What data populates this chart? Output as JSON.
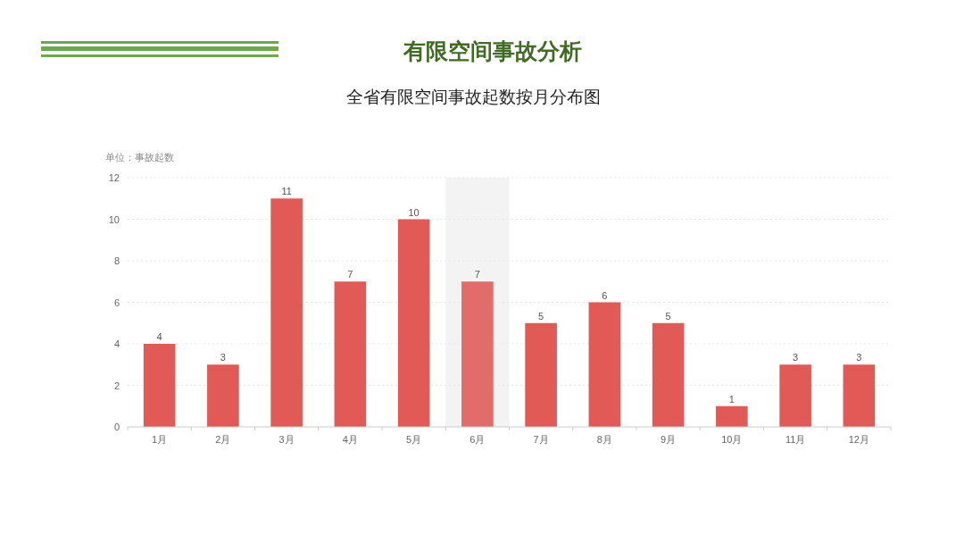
{
  "chart_data": {
    "type": "bar",
    "title": "有限空间事故分析",
    "subtitle": "全省有限空间事故起数按月分布图",
    "ylabel": "单位：事故起数",
    "categories": [
      "1月",
      "2月",
      "3月",
      "4月",
      "5月",
      "6月",
      "7月",
      "8月",
      "9月",
      "10月",
      "11月",
      "12月"
    ],
    "values": [
      4,
      3,
      11,
      7,
      10,
      7,
      5,
      6,
      5,
      1,
      3,
      3
    ],
    "colors": [
      "#e25a55",
      "#e25a55",
      "#e25a55",
      "#e25a55",
      "#e25a55",
      "#e26c69",
      "#e25a55",
      "#e25a55",
      "#e25a55",
      "#e25a55",
      "#e25a55",
      "#e25a55"
    ],
    "bands": [
      {
        "axis": "x",
        "from": "6月",
        "to": "6月",
        "color": "#f3f3f3"
      }
    ],
    "ylim": [
      0,
      12
    ],
    "yticks": [
      0,
      2,
      4,
      6,
      8,
      10,
      12
    ],
    "grid": "y",
    "data_labels": true
  }
}
